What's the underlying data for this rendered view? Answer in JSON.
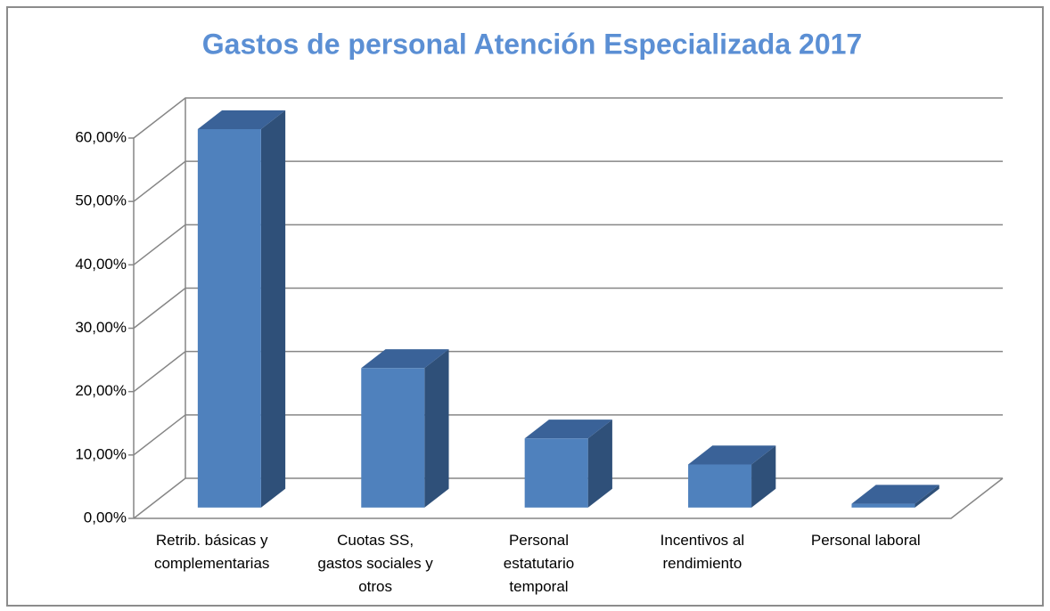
{
  "chart_data": {
    "type": "bar3d",
    "title": "Gastos de personal Atención Especializada 2017",
    "categories": [
      "Retrib. básicas y\ncomplementarias",
      "Cuotas SS,\ngastos sociales y\notros",
      "Personal\nestatutario\ntemporal",
      "Incentivos al\nrendimiento",
      "Personal laboral"
    ],
    "values": [
      59.7,
      22.0,
      10.9,
      6.8,
      0.6
    ],
    "color": "#4f81bd",
    "ylim": [
      0,
      60
    ],
    "yticks": [
      {
        "value": 0,
        "label": "0,00%"
      },
      {
        "value": 10,
        "label": "10,00%"
      },
      {
        "value": 20,
        "label": "20,00%"
      },
      {
        "value": 30,
        "label": "30,00%"
      },
      {
        "value": 40,
        "label": "40,00%"
      },
      {
        "value": 50,
        "label": "50,00%"
      },
      {
        "value": 60,
        "label": "60,00%"
      }
    ],
    "grid": true
  }
}
